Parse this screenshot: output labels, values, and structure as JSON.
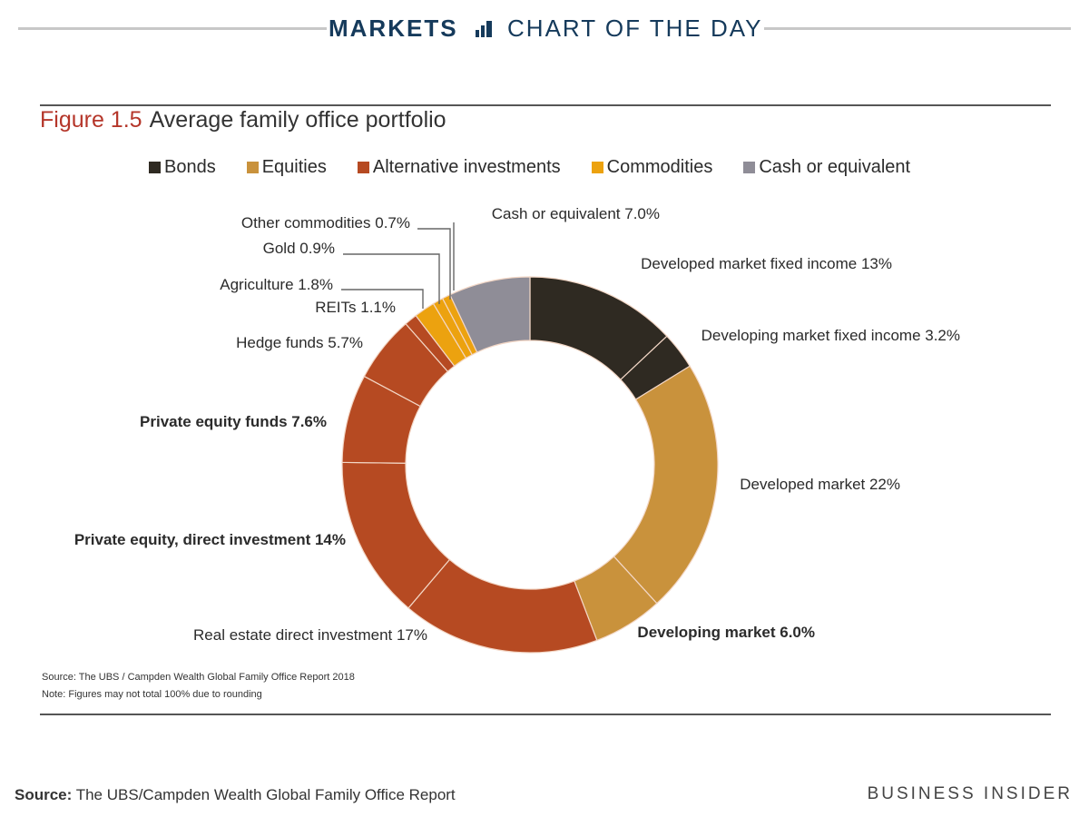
{
  "banner": {
    "brand": "MARKETS",
    "subtitle": "CHART OF THE DAY",
    "icon": "bar-chart-icon"
  },
  "figure": {
    "number": "Figure 1.5",
    "title": "Average family office portfolio"
  },
  "colors": {
    "Bonds": "#2f2a22",
    "Equities": "#c9923c",
    "Alternative investments": "#b64a22",
    "Commodities": "#eca20f",
    "Cash or equivalent": "#8f8d97",
    "brand": "#153a5b",
    "figure_number": "#b5362a"
  },
  "chart_data": {
    "type": "pie",
    "variant": "donut",
    "title": "Average family office portfolio",
    "legend": [
      "Bonds",
      "Equities",
      "Alternative investments",
      "Commodities",
      "Cash or equivalent"
    ],
    "legend_position": "top",
    "slices": [
      {
        "label": "Developed market fixed income 13%",
        "category": "Bonds",
        "value": 13
      },
      {
        "label": "Developing market fixed income 3.2%",
        "category": "Bonds",
        "value": 3.2
      },
      {
        "label": "Developed market 22%",
        "category": "Equities",
        "value": 22
      },
      {
        "label": "Developing market 6.0%",
        "category": "Equities",
        "value": 6.0
      },
      {
        "label": "Real estate direct investment 17%",
        "category": "Alternative investments",
        "value": 17
      },
      {
        "label": "Private equity, direct investment 14%",
        "category": "Alternative investments",
        "value": 14
      },
      {
        "label": "Private equity funds 7.6%",
        "category": "Alternative investments",
        "value": 7.6
      },
      {
        "label": "Hedge funds 5.7%",
        "category": "Alternative investments",
        "value": 5.7
      },
      {
        "label": "REITs 1.1%",
        "category": "Alternative investments",
        "value": 1.1
      },
      {
        "label": "Agriculture 1.8%",
        "category": "Commodities",
        "value": 1.8
      },
      {
        "label": "Gold 0.9%",
        "category": "Commodities",
        "value": 0.9
      },
      {
        "label": "Other commodities 0.7%",
        "category": "Commodities",
        "value": 0.7
      },
      {
        "label": "Cash or equivalent 7.0%",
        "category": "Cash or equivalent",
        "value": 7.0
      }
    ]
  },
  "notes": {
    "source": "Source: The UBS / Campden Wealth Global Family Office Report 2018",
    "note": "Note: Figures may not total 100% due to rounding"
  },
  "footer": {
    "source_label": "Source:",
    "source_text": "The UBS/Campden Wealth Global Family Office Report",
    "brand": "BUSINESS INSIDER"
  }
}
